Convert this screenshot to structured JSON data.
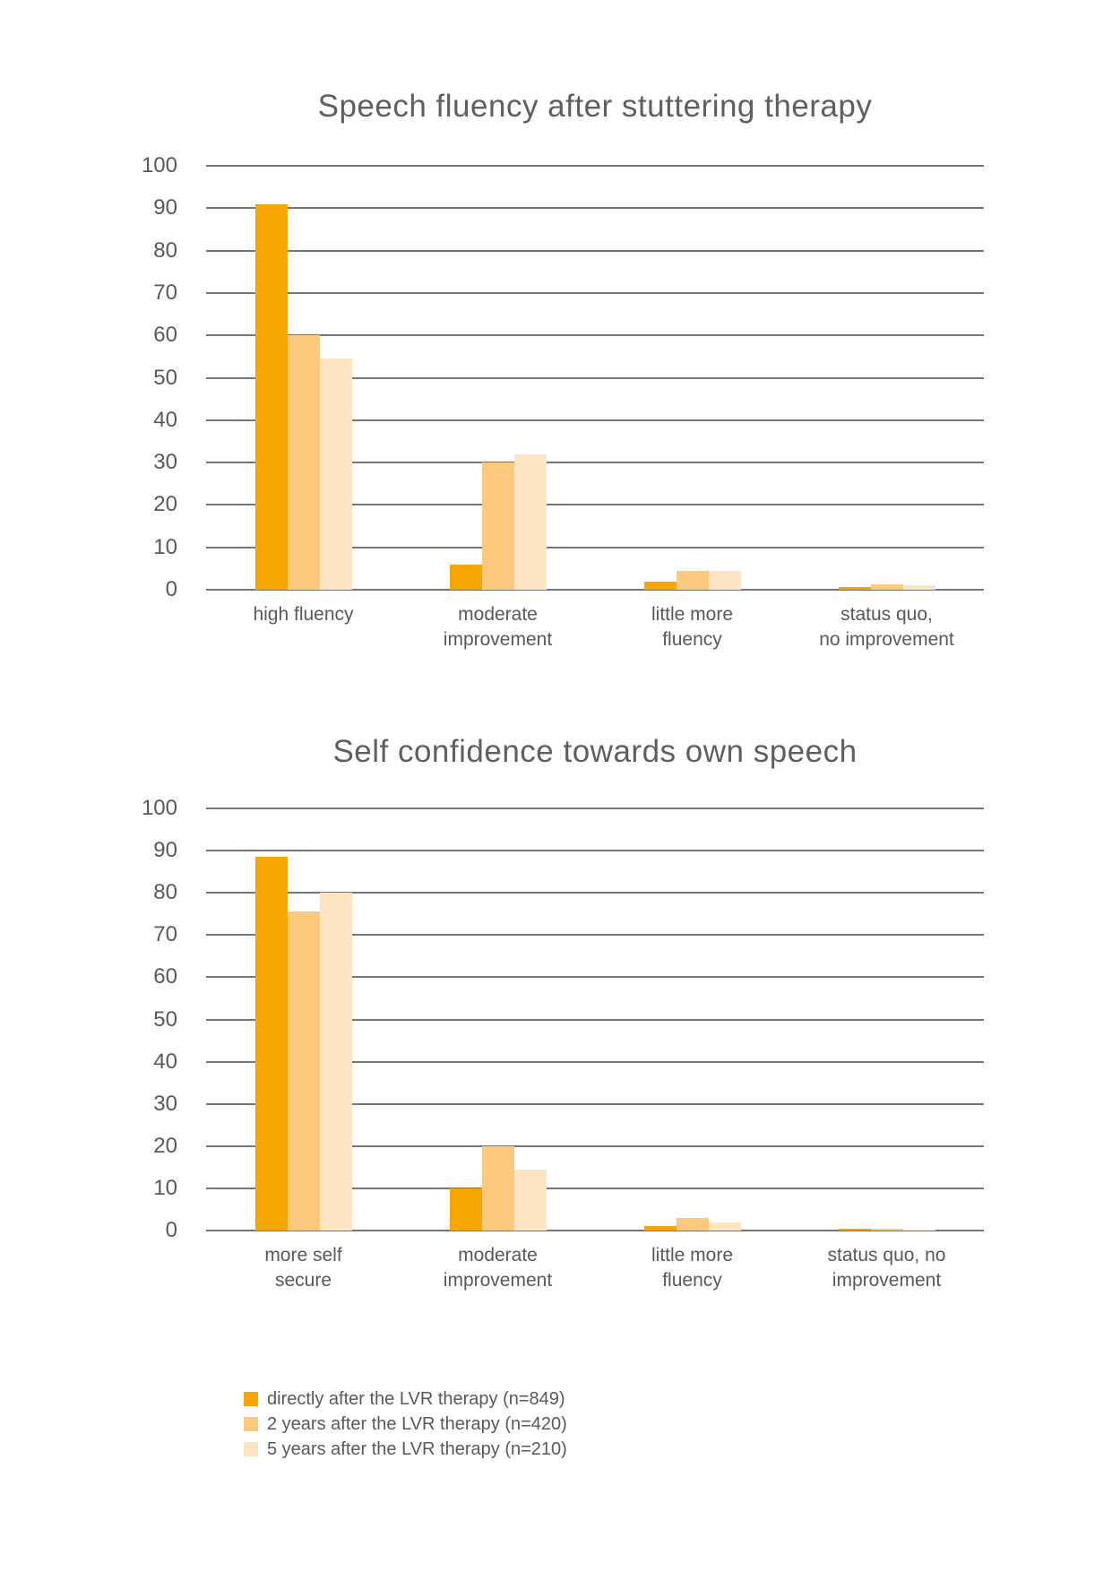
{
  "colors": {
    "series": [
      "#F5A603",
      "#FBC97D",
      "#FDE5C3"
    ],
    "gridline": "#767676",
    "text": "#595959"
  },
  "legend": {
    "items": [
      {
        "label": "directly after the LVR therapy (n=849)",
        "color": "#F5A603"
      },
      {
        "label": "2 years after the LVR therapy (n=420)",
        "color": "#FBC97D"
      },
      {
        "label": "5 years after the LVR therapy (n=210)",
        "color": "#FDE5C3"
      }
    ]
  },
  "chart_data": [
    {
      "type": "bar",
      "title": "Speech fluency after stuttering therapy",
      "categories": [
        "high fluency",
        "moderate\nimprovement",
        "little more\nfluency",
        "status quo,\nno improvement"
      ],
      "series": [
        {
          "name": "directly after the LVR therapy (n=849)",
          "values": [
            91,
            6,
            2,
            0.7
          ]
        },
        {
          "name": "2 years after the LVR therapy (n=420)",
          "values": [
            60,
            30,
            4.5,
            1.2
          ]
        },
        {
          "name": "5 years after the LVR therapy (n=210)",
          "values": [
            54.5,
            32,
            4.5,
            1
          ]
        }
      ],
      "xlabel": "",
      "ylabel": "",
      "ylim": [
        0,
        100
      ],
      "yticks": [
        100,
        90,
        80,
        70,
        60,
        50,
        40,
        30,
        20,
        10,
        0
      ],
      "grid": true,
      "legend_position": "shared-bottom"
    },
    {
      "type": "bar",
      "title": "Self confidence towards own speech",
      "categories": [
        "more self\nsecure",
        "moderate\nimprovement",
        "little more\nfluency",
        "status quo, no\nimprovement"
      ],
      "series": [
        {
          "name": "directly after the LVR therapy (n=849)",
          "values": [
            88.5,
            10,
            1,
            0.5
          ]
        },
        {
          "name": "2 years after the LVR therapy (n=420)",
          "values": [
            75.5,
            20,
            3,
            0.5
          ]
        },
        {
          "name": "5 years after the LVR therapy (n=210)",
          "values": [
            80,
            14.5,
            2,
            0.3
          ]
        }
      ],
      "xlabel": "",
      "ylabel": "",
      "ylim": [
        0,
        100
      ],
      "yticks": [
        100,
        90,
        80,
        70,
        60,
        50,
        40,
        30,
        20,
        10,
        0
      ],
      "grid": true,
      "legend_position": "shared-bottom"
    }
  ]
}
